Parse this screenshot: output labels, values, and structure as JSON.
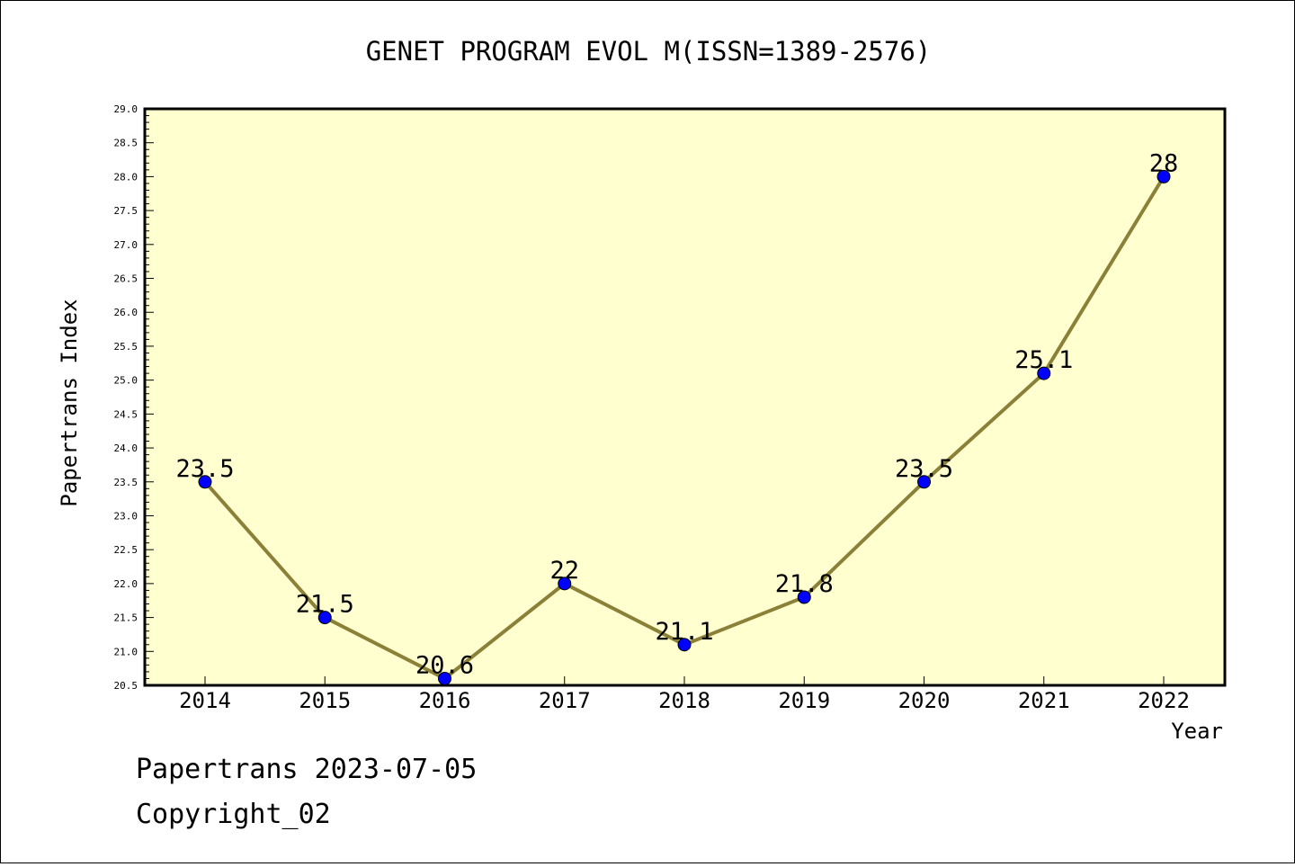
{
  "chart_data": {
    "type": "line",
    "title": "GENET PROGRAM EVOL M(ISSN=1389-2576)",
    "xlabel": "Year",
    "ylabel": "Papertrans Index",
    "x": [
      "2014",
      "2015",
      "2016",
      "2017",
      "2018",
      "2019",
      "2020",
      "2021",
      "2022"
    ],
    "values": [
      23.5,
      21.5,
      20.6,
      22,
      21.1,
      21.8,
      23.5,
      25.1,
      28
    ],
    "data_labels": [
      "23.5",
      "21.5",
      "20.6",
      "22",
      "21.1",
      "21.8",
      "23.5",
      "25.1",
      "28"
    ],
    "ylim": [
      20.5,
      29.0
    ],
    "y_ticks": [
      "20.5",
      "21.0",
      "21.5",
      "22.0",
      "22.5",
      "23.0",
      "23.5",
      "24.0",
      "24.5",
      "25.0",
      "25.5",
      "26.0",
      "26.5",
      "27.0",
      "27.5",
      "28.0",
      "28.5",
      "29.0"
    ],
    "grid": false,
    "colors": {
      "plot_background": "#ffffd0",
      "line": "#8b8038",
      "marker": "#0000ff"
    }
  },
  "footer": {
    "line1": "Papertrans 2023-07-05",
    "line2": "Copyright_02"
  }
}
